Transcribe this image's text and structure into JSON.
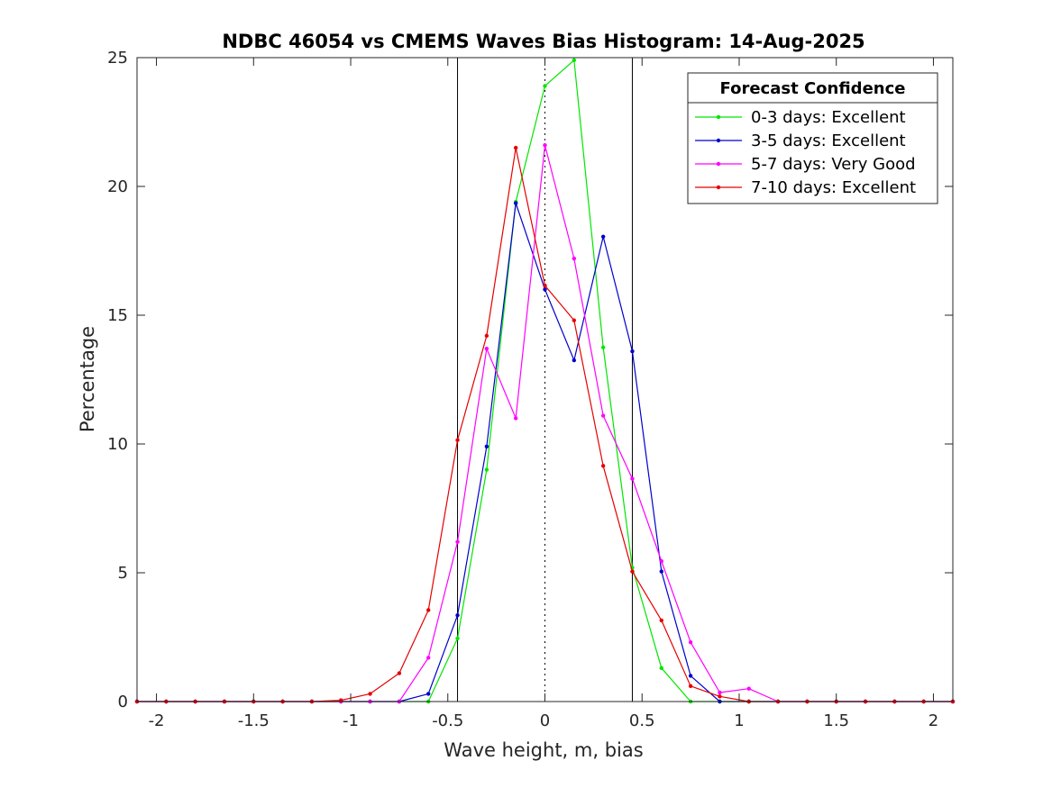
{
  "chart_data": {
    "type": "line",
    "title": "NDBC 46054 vs CMEMS Waves Bias Histogram: 14-Aug-2025",
    "xlabel": "Wave height, m, bias",
    "ylabel": "Percentage",
    "xlim": [
      -2.1,
      2.1
    ],
    "ylim": [
      0,
      25
    ],
    "xticks": [
      -2,
      -1.5,
      -1,
      -0.5,
      0,
      0.5,
      1,
      1.5,
      2
    ],
    "xtick_labels": [
      "-2",
      "-1.5",
      "-1",
      "-0.5",
      "0",
      "0.5",
      "1",
      "1.5",
      "2"
    ],
    "yticks": [
      0,
      5,
      10,
      15,
      20,
      25
    ],
    "ytick_labels": [
      "0",
      "5",
      "10",
      "15",
      "20",
      "25"
    ],
    "grid": false,
    "reference_lines": {
      "solid_x": [
        -0.45,
        0.45
      ],
      "dotted_x": [
        0
      ]
    },
    "legend": {
      "title": "Forecast Confidence",
      "placement": "top-right"
    },
    "x": [
      -2.1,
      -1.95,
      -1.8,
      -1.65,
      -1.5,
      -1.35,
      -1.2,
      -1.05,
      -0.9,
      -0.75,
      -0.6,
      -0.45,
      -0.3,
      -0.15,
      0,
      0.15,
      0.3,
      0.45,
      0.6,
      0.75,
      0.9,
      1.05,
      1.2,
      1.35,
      1.5,
      1.65,
      1.8,
      1.95,
      2.1
    ],
    "series": [
      {
        "name": "0-3 days: Excellent",
        "color": "#00e600",
        "values": [
          0,
          0,
          0,
          0,
          0,
          0,
          0,
          0,
          0,
          0,
          0,
          2.45,
          9.0,
          19.4,
          23.9,
          24.9,
          13.75,
          5.2,
          1.3,
          0,
          0,
          0,
          0,
          0,
          0,
          0,
          0,
          0,
          0
        ]
      },
      {
        "name": "3-5 days: Excellent",
        "color": "#0000cc",
        "values": [
          0,
          0,
          0,
          0,
          0,
          0,
          0,
          0,
          0,
          0,
          0.3,
          3.35,
          9.9,
          19.35,
          16.0,
          13.25,
          18.05,
          13.6,
          5.05,
          1.0,
          0,
          0,
          0,
          0,
          0,
          0,
          0,
          0,
          0
        ]
      },
      {
        "name": "5-7 days: Very Good",
        "color": "#ff00ff",
        "values": [
          0,
          0,
          0,
          0,
          0,
          0,
          0,
          0,
          0,
          0,
          1.7,
          6.2,
          13.7,
          11.0,
          21.6,
          17.2,
          11.1,
          8.65,
          5.45,
          2.3,
          0.35,
          0.5,
          0,
          0,
          0,
          0,
          0,
          0,
          0
        ]
      },
      {
        "name": "7-10 days: Excellent",
        "color": "#e60000",
        "values": [
          0,
          0,
          0,
          0,
          0,
          0,
          0,
          0.05,
          0.3,
          1.1,
          3.55,
          10.15,
          14.2,
          21.5,
          16.15,
          14.8,
          9.15,
          5.05,
          3.15,
          0.6,
          0.2,
          0,
          0,
          0,
          0,
          0,
          0,
          0,
          0
        ]
      }
    ]
  }
}
